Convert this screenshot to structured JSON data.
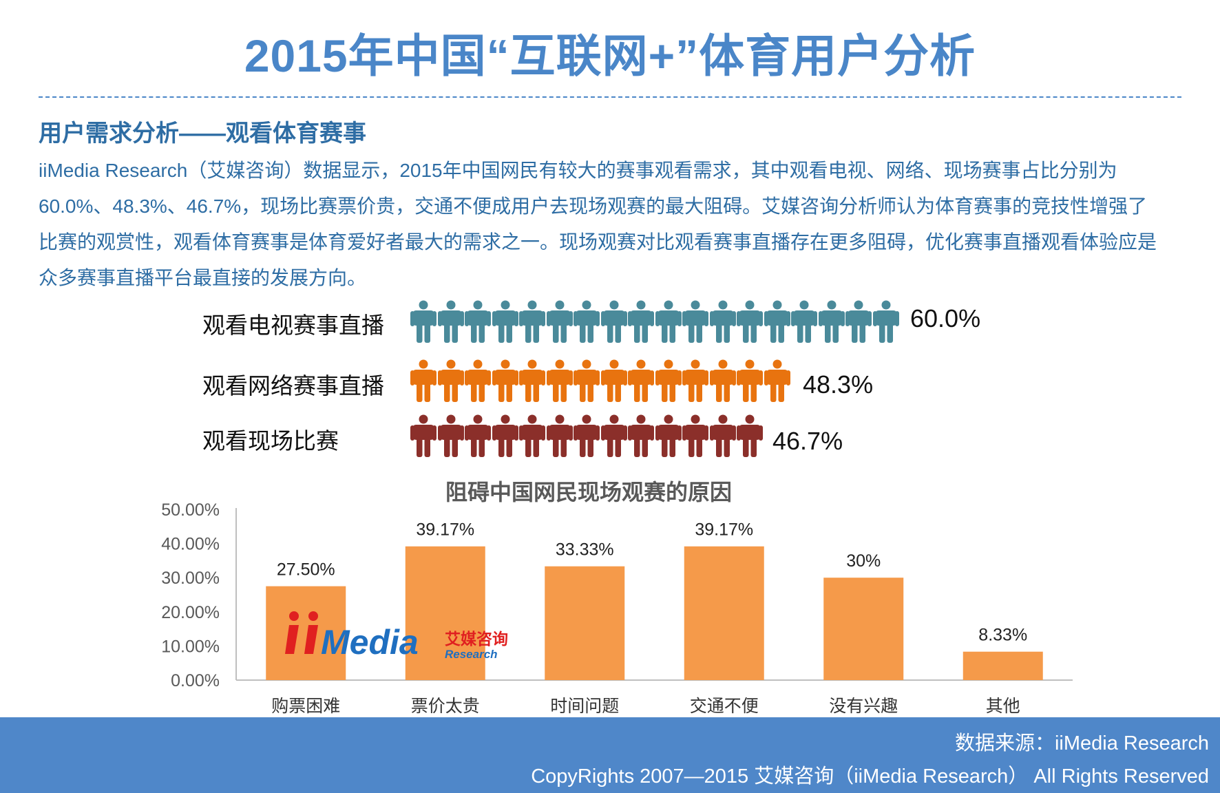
{
  "page": {
    "title": "2015年中国“互联网+”体育用户分析",
    "subtitle": "用户需求分析——观看体育赛事",
    "paragraph": [
      "iiMedia Research（艾媒咨询）数据显示，2015年中国网民有较大的赛事观看需求，其中观看电视、网络、现场赛事占比分别为",
      "60.0%、48.3%、46.7%，现场比赛票价贵，交通不便成用户去现场观赛的最大阻碍。艾媒咨询分析师认为体育赛事的竞技性增强了",
      "比赛的观赏性，观看体育赛事是体育爱好者最大的需求之一。现场观赛对比观看赛事直播存在更多阻碍，优化赛事直播观看体验应是",
      "众多赛事直播平台最直接的发展方向。"
    ]
  },
  "people_rows": [
    {
      "label": "观看电视赛事直播",
      "value": 60.0,
      "value_text": "60.0%",
      "icons": 18,
      "color": "#4a8a9a"
    },
    {
      "label": "观看网络赛事直播",
      "value": 48.3,
      "value_text": "48.3%",
      "icons": 14,
      "color": "#e8730f"
    },
    {
      "label": "观看现场比赛",
      "value": 46.7,
      "value_text": "46.7%",
      "icons": 13,
      "color": "#8b2f2a"
    }
  ],
  "watermark": {
    "brand": "iiMedia",
    "cn": "艾媒咨询",
    "en": "Research"
  },
  "chart_data": {
    "type": "bar",
    "title": "阻碍中国网民现场观赛的原因",
    "categories": [
      "购票困难",
      "票价太贵",
      "时间问题",
      "交通不便",
      "没有兴趣",
      "其他"
    ],
    "values": [
      27.5,
      39.17,
      33.33,
      39.17,
      30,
      8.33
    ],
    "data_labels": [
      "27.50%",
      "39.17%",
      "33.33%",
      "39.17%",
      "30%",
      "8.33%"
    ],
    "ylim": [
      0,
      50
    ],
    "yticks": [
      "0.00%",
      "10.00%",
      "20.00%",
      "30.00%",
      "40.00%",
      "50.00%"
    ],
    "bar_color": "#f59a4a",
    "grid": false,
    "legend": "none"
  },
  "footer": {
    "source": "数据来源：iiMedia Research",
    "copyright": "CopyRights 2007—2015 艾媒咨询（iiMedia Research） All Rights Reserved",
    "bg_color": "#4f87c9"
  }
}
